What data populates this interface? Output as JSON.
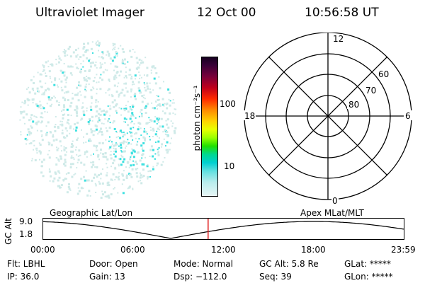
{
  "header": {
    "title": "Ultraviolet Imager",
    "date": "12 Oct 00",
    "time": "10:56:58 UT"
  },
  "colorbar": {
    "label": "photon cm⁻²s⁻¹",
    "ticks": [
      "100",
      "10"
    ]
  },
  "polar_plot": {
    "mlt_labels": [
      "12",
      "18",
      "6",
      "0"
    ],
    "lat_labels": [
      "60",
      "70",
      "80"
    ]
  },
  "orbit": {
    "left_caption": "Geographic Lat/Lon",
    "right_caption": "Apex MLat/MLT",
    "y_axis_label": "GC Alt",
    "y_ticks": [
      "9.0",
      "1.8"
    ],
    "time_ticks": [
      "00:00",
      "06:00",
      "12:00",
      "18:00",
      "23:59"
    ],
    "current_time_fraction": 0.4584
  },
  "info": {
    "flt": "Flt: LBHL",
    "door": "Door: Open",
    "mode": "Mode: Normal",
    "gc_alt": "GC Alt: 5.8 Re",
    "glat": "GLat: *****",
    "ip": "IP: 36.0",
    "gain": "Gain: 13",
    "dsp": "Dsp: −112.0",
    "seq": "Seq: 39",
    "glon": "GLon: *****"
  },
  "colors": {
    "speckle_light": "#cfeae8",
    "speckle_cyan": "#3fe0e0",
    "marker": "#e02020"
  }
}
